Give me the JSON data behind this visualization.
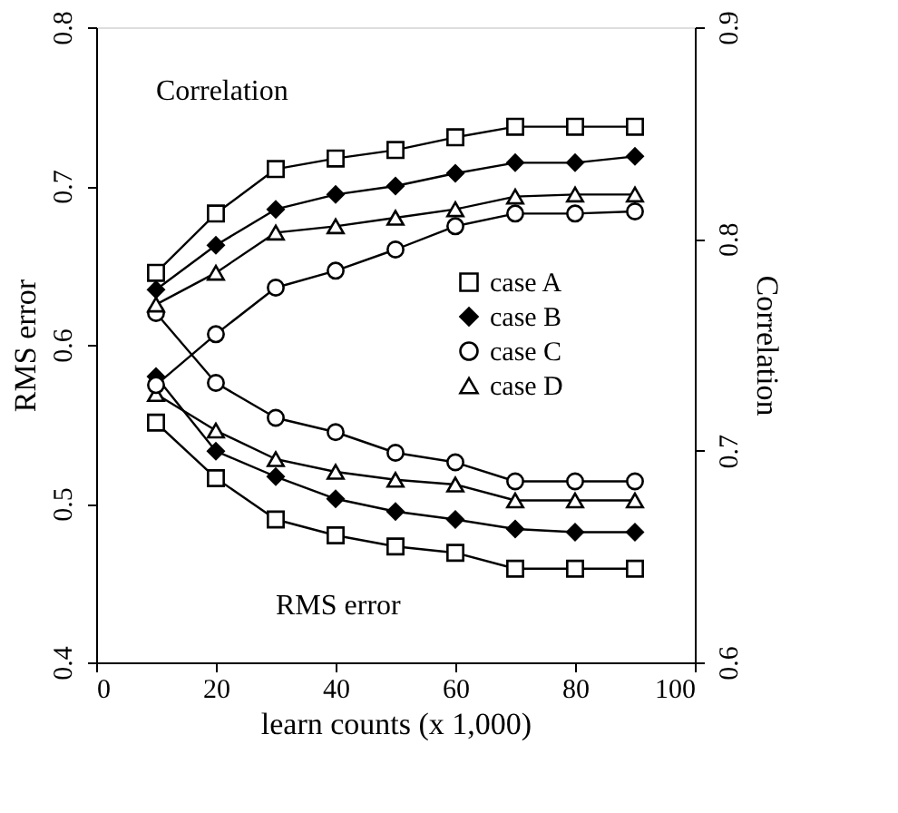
{
  "chart_data": {
    "type": "line",
    "xlabel": "learn counts (x 1,000)",
    "ylabel": "RMS error",
    "y2label": "Correlation",
    "x": [
      10,
      20,
      30,
      40,
      50,
      60,
      70,
      80,
      90
    ],
    "xlim": [
      0,
      100
    ],
    "xticks": [
      0,
      20,
      40,
      60,
      80,
      100
    ],
    "ylim": [
      0.4,
      0.8
    ],
    "yticks": [
      0.4,
      0.5,
      0.6,
      0.7,
      0.8
    ],
    "y2lim": [
      0.6,
      0.9
    ],
    "y2ticks": [
      0.6,
      0.7,
      0.8,
      0.9
    ],
    "grid": false,
    "legend": "right",
    "line_style": "solid",
    "annotations": [
      "Correlation",
      "RMS error"
    ],
    "series": [
      {
        "name": "case A",
        "color": "#000000",
        "marker": "square",
        "values": [
          0.551,
          0.516,
          0.49,
          0.48,
          0.473,
          0.469,
          0.459,
          0.459,
          0.459
        ]
      },
      {
        "name": "case B",
        "color": "#000000",
        "marker": "diamond",
        "values": [
          0.58,
          0.533,
          0.517,
          0.503,
          0.495,
          0.49,
          0.484,
          0.482,
          0.482
        ]
      },
      {
        "name": "case C",
        "color": "#000000",
        "marker": "circle",
        "values": [
          0.62,
          0.576,
          0.554,
          0.545,
          0.532,
          0.526,
          0.514,
          0.514,
          0.514
        ]
      },
      {
        "name": "case D",
        "color": "#000000",
        "marker": "triangle",
        "values": [
          0.569,
          0.546,
          0.528,
          0.52,
          0.515,
          0.512,
          0.502,
          0.502,
          0.502
        ]
      },
      {
        "color": "#000000",
        "marker": "square",
        "axis": "y2",
        "values": [
          0.784,
          0.812,
          0.833,
          0.838,
          0.842,
          0.848,
          0.853,
          0.853,
          0.853
        ]
      },
      {
        "color": "#000000",
        "marker": "diamond",
        "axis": "y2",
        "values": [
          0.776,
          0.797,
          0.814,
          0.821,
          0.825,
          0.831,
          0.836,
          0.836,
          0.839
        ]
      },
      {
        "color": "#000000",
        "marker": "circle",
        "axis": "y2",
        "values": [
          0.731,
          0.755,
          0.777,
          0.785,
          0.795,
          0.806,
          0.812,
          0.812,
          0.813
        ]
      },
      {
        "color": "#000000",
        "marker": "triangle",
        "axis": "y2",
        "values": [
          0.769,
          0.784,
          0.803,
          0.806,
          0.81,
          0.814,
          0.82,
          0.821,
          0.821
        ]
      }
    ]
  }
}
